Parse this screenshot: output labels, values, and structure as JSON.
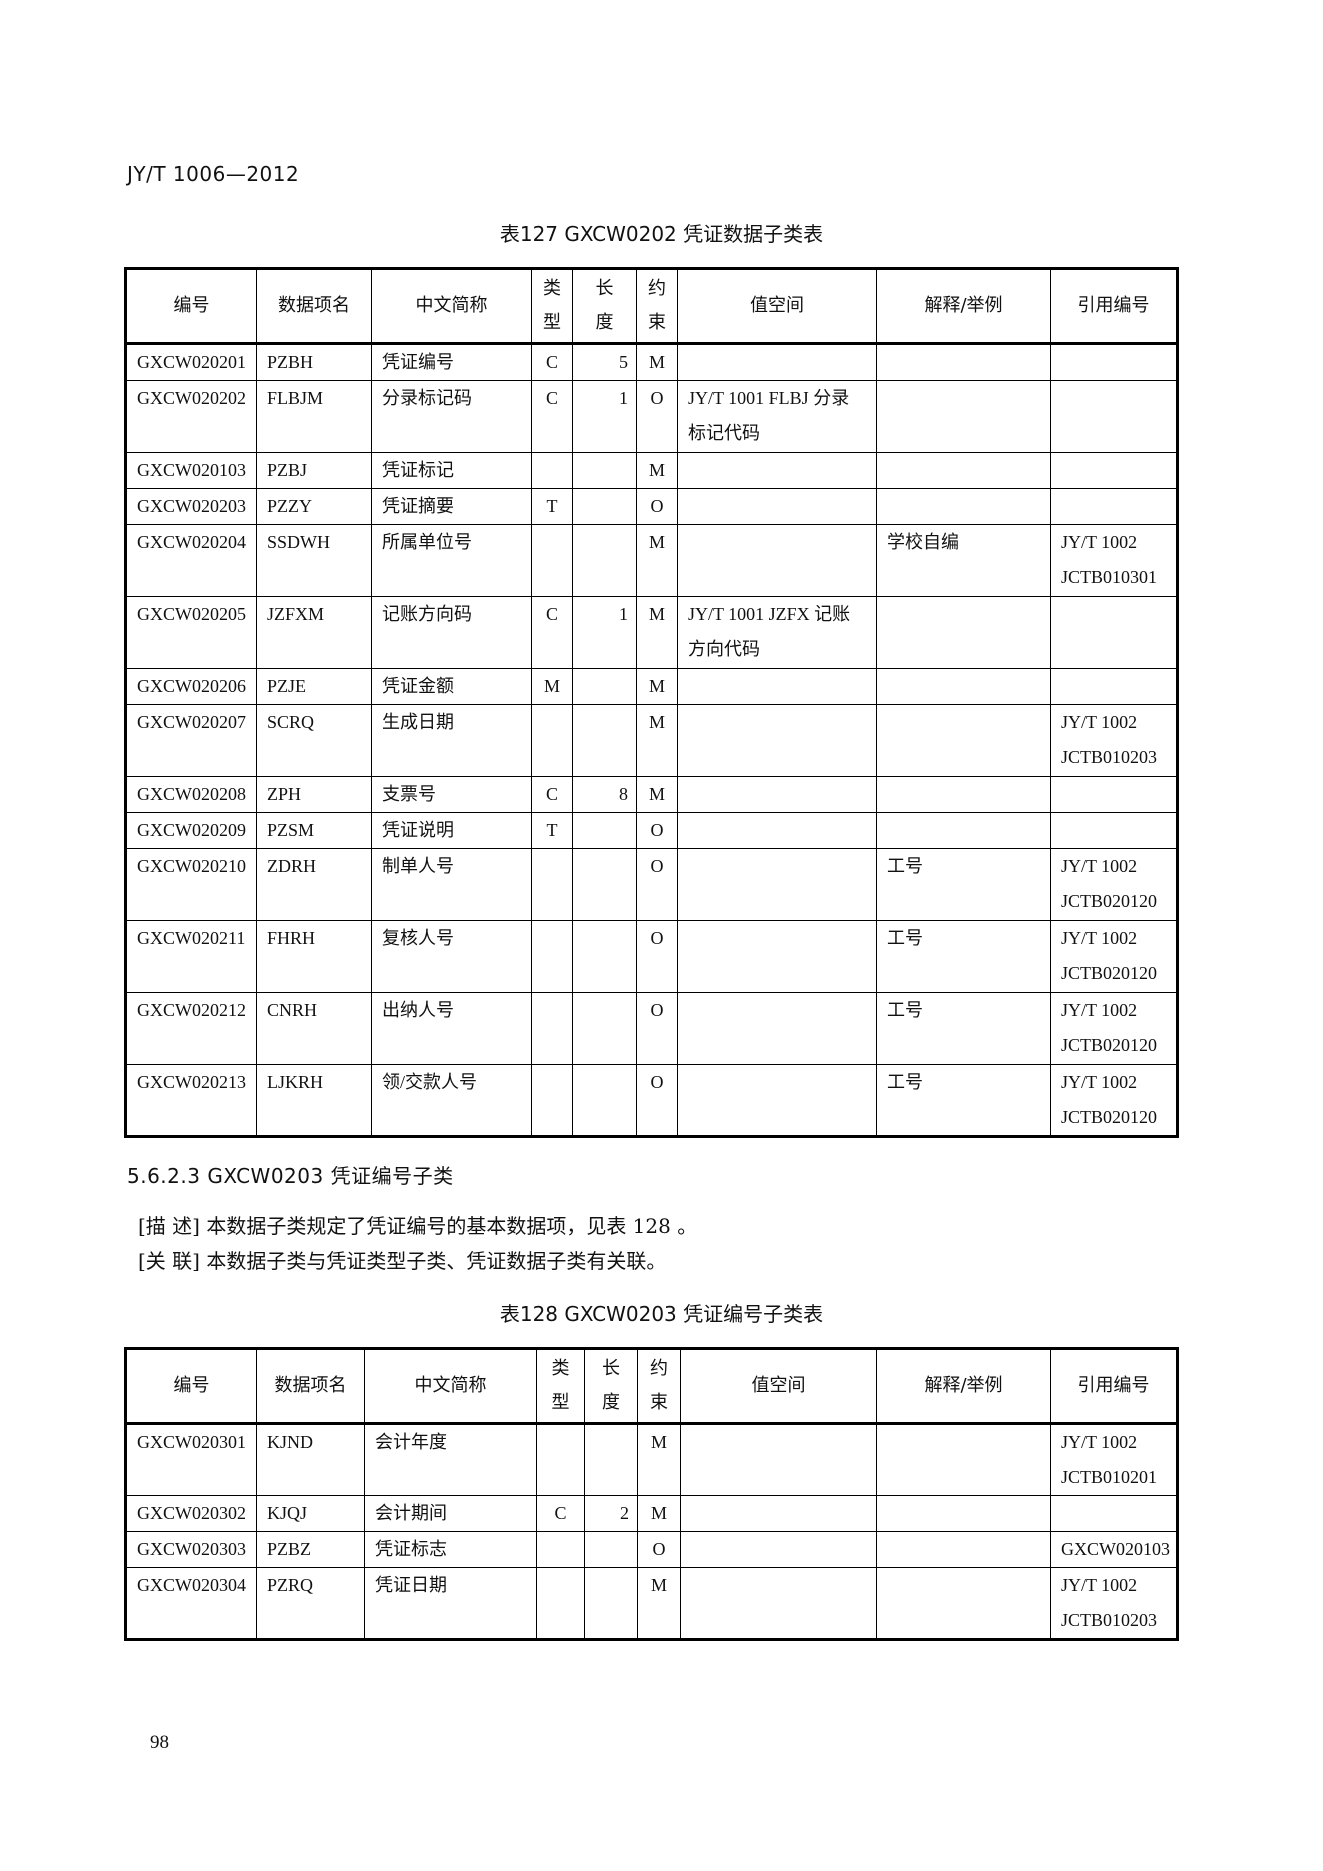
{
  "running_header": "JY/T 1006—2012",
  "table127": {
    "caption": "表127   GXCW0202 凭证数据子类表",
    "headers": [
      "编号",
      "数据项名",
      "中文简称",
      "类\n型",
      "长\n度",
      "约\n束",
      "值空间",
      "解释/举例",
      "引用编号"
    ],
    "rows": [
      [
        "GXCW020201",
        "PZBH",
        "凭证编号",
        "C",
        "5",
        "M",
        "",
        "",
        ""
      ],
      [
        "GXCW020202",
        "FLBJM",
        "分录标记码",
        "C",
        "1",
        "O",
        "JY/T 1001 FLBJ 分录标记代码",
        "",
        ""
      ],
      [
        "GXCW020103",
        "PZBJ",
        "凭证标记",
        "",
        "",
        "M",
        "",
        "",
        ""
      ],
      [
        "GXCW020203",
        "PZZY",
        "凭证摘要",
        "T",
        "",
        "O",
        "",
        "",
        ""
      ],
      [
        "GXCW020204",
        "SSDWH",
        "所属单位号",
        "",
        "",
        "M",
        "",
        "学校自编",
        "JY/T 1002 JCTB010301"
      ],
      [
        "GXCW020205",
        "JZFXM",
        "记账方向码",
        "C",
        "1",
        "M",
        "JY/T 1001 JZFX 记账方向代码",
        "",
        ""
      ],
      [
        "GXCW020206",
        "PZJE",
        "凭证金额",
        "M",
        "",
        "M",
        "",
        "",
        ""
      ],
      [
        "GXCW020207",
        "SCRQ",
        "生成日期",
        "",
        "",
        "M",
        "",
        "",
        "JY/T 1002 JCTB010203"
      ],
      [
        "GXCW020208",
        "ZPH",
        "支票号",
        "C",
        "8",
        "M",
        "",
        "",
        ""
      ],
      [
        "GXCW020209",
        "PZSM",
        "凭证说明",
        "T",
        "",
        "O",
        "",
        "",
        ""
      ],
      [
        "GXCW020210",
        "ZDRH",
        "制单人号",
        "",
        "",
        "O",
        "",
        "工号",
        "JY/T 1002 JCTB020120"
      ],
      [
        "GXCW020211",
        "FHRH",
        "复核人号",
        "",
        "",
        "O",
        "",
        "工号",
        "JY/T 1002 JCTB020120"
      ],
      [
        "GXCW020212",
        "CNRH",
        "出纳人号",
        "",
        "",
        "O",
        "",
        "工号",
        "JY/T 1002 JCTB020120"
      ],
      [
        "GXCW020213",
        "LJKRH",
        "领/交款人号",
        "",
        "",
        "O",
        "",
        "工号",
        "JY/T 1002 JCTB020120"
      ]
    ]
  },
  "section": {
    "heading": "5.6.2.3  GXCW0203 凭证编号子类",
    "description": "[描 述] 本数据子类规定了凭证编号的基本数据项，见表 128  。",
    "relation": "[关 联] 本数据子类与凭证类型子类、凭证数据子类有关联。"
  },
  "table128": {
    "caption": "表128   GXCW0203 凭证编号子类表",
    "headers": [
      "编号",
      "数据项名",
      "中文简称",
      "类\n型",
      "长\n度",
      "约\n束",
      "值空间",
      "解释/举例",
      "引用编号"
    ],
    "rows": [
      [
        "GXCW020301",
        "KJND",
        "会计年度",
        "",
        "",
        "M",
        "",
        "",
        "JY/T 1002 JCTB010201"
      ],
      [
        "GXCW020302",
        "KJQJ",
        "会计期间",
        "C",
        "2",
        "M",
        "",
        "",
        ""
      ],
      [
        "GXCW020303",
        "PZBZ",
        "凭证标志",
        "",
        "",
        "O",
        "",
        "",
        "GXCW020103"
      ],
      [
        "GXCW020304",
        "PZRQ",
        "凭证日期",
        "",
        "",
        "M",
        "",
        "",
        "JY/T 1002 JCTB010203"
      ]
    ]
  },
  "page_number": "98"
}
